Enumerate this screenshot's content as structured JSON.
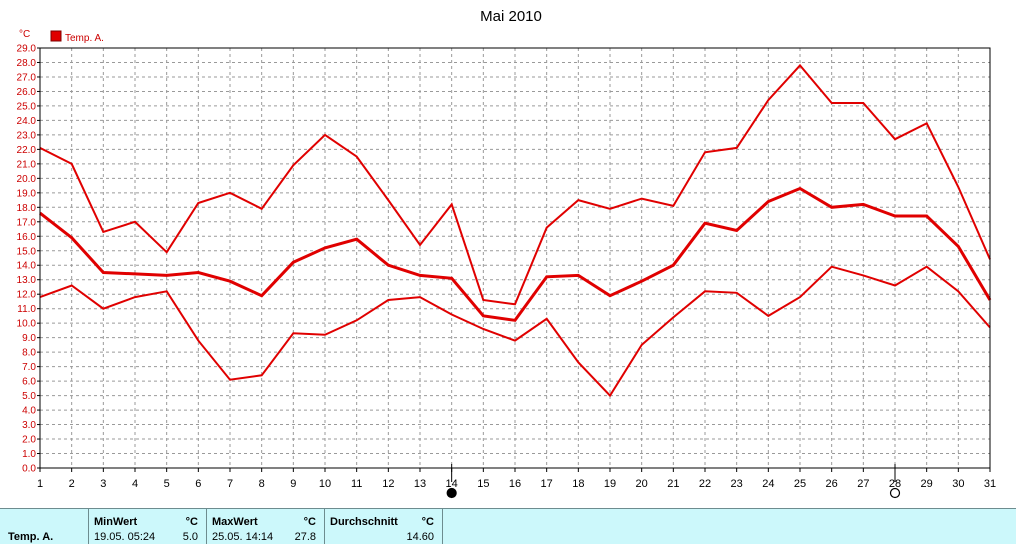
{
  "header": {
    "title": "Mai 2010"
  },
  "colors": {
    "line": "#e00000",
    "grid": "#9a9a9a",
    "panel": "#ccf8fb"
  },
  "markers": {
    "new_moon_day": 14,
    "full_moon_day": 28,
    "new_moon_icon": "filled-circle-icon",
    "full_moon_icon": "open-circle-icon"
  },
  "stats": {
    "row_label": "Temp. A.",
    "min": {
      "label": "MinWert",
      "unit": "°C",
      "date": "19.05.  05:24",
      "value": "5.0"
    },
    "max": {
      "label": "MaxWert",
      "unit": "°C",
      "date": "25.05.  14:14",
      "value": "27.8"
    },
    "avg": {
      "label": "Durchschnitt",
      "unit": "°C",
      "value": "14.60"
    }
  },
  "chart_data": {
    "type": "line",
    "title": "Mai 2010",
    "ylabel": "°C",
    "xlabel": "",
    "ylim": [
      0,
      29
    ],
    "y_tick_step": 1,
    "x": [
      1,
      2,
      3,
      4,
      5,
      6,
      7,
      8,
      9,
      10,
      11,
      12,
      13,
      14,
      15,
      16,
      17,
      18,
      19,
      20,
      21,
      22,
      23,
      24,
      25,
      26,
      27,
      28,
      29,
      30,
      31
    ],
    "grid": true,
    "legend": {
      "position": "top-left",
      "entries": [
        "Temp. A."
      ]
    },
    "series": [
      {
        "name": "Temp. A.",
        "role": "max",
        "color": "#e00000",
        "values": [
          22.1,
          21.0,
          16.3,
          17.0,
          14.9,
          18.3,
          19.0,
          17.9,
          20.9,
          23.0,
          21.5,
          18.5,
          15.4,
          18.2,
          11.6,
          11.3,
          16.6,
          18.5,
          17.9,
          18.6,
          18.1,
          21.8,
          22.1,
          25.4,
          27.8,
          25.2,
          25.2,
          22.7,
          23.8,
          19.4,
          14.4
        ]
      },
      {
        "role": "mean",
        "color": "#e00000",
        "values": [
          17.6,
          15.9,
          13.5,
          13.4,
          13.3,
          13.5,
          12.9,
          11.9,
          14.2,
          15.2,
          15.8,
          14.0,
          13.3,
          13.1,
          10.5,
          10.2,
          13.2,
          13.3,
          11.9,
          12.9,
          14.0,
          16.9,
          16.4,
          18.4,
          19.3,
          18.0,
          18.2,
          17.4,
          17.4,
          15.3,
          11.6
        ]
      },
      {
        "role": "min",
        "color": "#e00000",
        "values": [
          11.8,
          12.6,
          11.0,
          11.8,
          12.2,
          8.8,
          6.1,
          6.4,
          9.3,
          9.2,
          10.2,
          11.6,
          11.8,
          10.6,
          9.6,
          8.8,
          10.3,
          7.3,
          5.0,
          8.5,
          10.4,
          12.2,
          12.1,
          10.5,
          11.8,
          13.9,
          13.3,
          12.6,
          13.9,
          12.2,
          9.7
        ]
      }
    ]
  }
}
